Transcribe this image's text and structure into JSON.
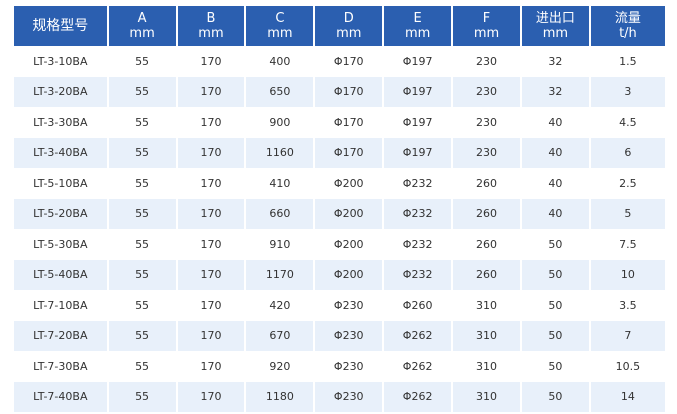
{
  "colors": {
    "header_bg": "#2b5fb0",
    "header_text": "#ffffff",
    "stripe_bg": "#e8f0fa",
    "body_text": "#333333"
  },
  "table": {
    "headers": [
      {
        "line1": "规格型号",
        "line2": ""
      },
      {
        "line1": "A",
        "line2": "mm"
      },
      {
        "line1": "B",
        "line2": "mm"
      },
      {
        "line1": "C",
        "line2": "mm"
      },
      {
        "line1": "D",
        "line2": "mm"
      },
      {
        "line1": "E",
        "line2": "mm"
      },
      {
        "line1": "F",
        "line2": "mm"
      },
      {
        "line1": "进出口",
        "line2": "mm"
      },
      {
        "line1": "流量",
        "line2": "t/h"
      }
    ],
    "rows": [
      [
        "LT-3-10BA",
        "55",
        "170",
        "400",
        "Φ170",
        "Φ197",
        "230",
        "32",
        "1.5"
      ],
      [
        "LT-3-20BA",
        "55",
        "170",
        "650",
        "Φ170",
        "Φ197",
        "230",
        "32",
        "3"
      ],
      [
        "LT-3-30BA",
        "55",
        "170",
        "900",
        "Φ170",
        "Φ197",
        "230",
        "40",
        "4.5"
      ],
      [
        "LT-3-40BA",
        "55",
        "170",
        "1160",
        "Φ170",
        "Φ197",
        "230",
        "40",
        "6"
      ],
      [
        "LT-5-10BA",
        "55",
        "170",
        "410",
        "Φ200",
        "Φ232",
        "260",
        "40",
        "2.5"
      ],
      [
        "LT-5-20BA",
        "55",
        "170",
        "660",
        "Φ200",
        "Φ232",
        "260",
        "40",
        "5"
      ],
      [
        "LT-5-30BA",
        "55",
        "170",
        "910",
        "Φ200",
        "Φ232",
        "260",
        "50",
        "7.5"
      ],
      [
        "LT-5-40BA",
        "55",
        "170",
        "1170",
        "Φ200",
        "Φ232",
        "260",
        "50",
        "10"
      ],
      [
        "LT-7-10BA",
        "55",
        "170",
        "420",
        "Φ230",
        "Φ260",
        "310",
        "50",
        "3.5"
      ],
      [
        "LT-7-20BA",
        "55",
        "170",
        "670",
        "Φ230",
        "Φ262",
        "310",
        "50",
        "7"
      ],
      [
        "LT-7-30BA",
        "55",
        "170",
        "920",
        "Φ230",
        "Φ262",
        "310",
        "50",
        "10.5"
      ],
      [
        "LT-7-40BA",
        "55",
        "170",
        "1180",
        "Φ230",
        "Φ262",
        "310",
        "50",
        "14"
      ]
    ]
  }
}
